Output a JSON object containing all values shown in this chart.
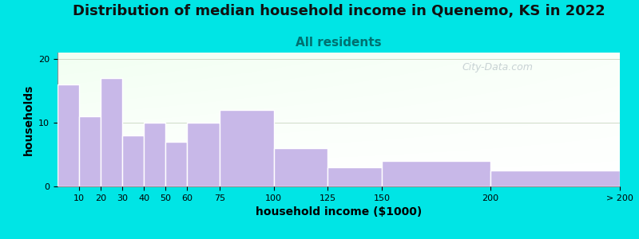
{
  "title": "Distribution of median household income in Quenemo, KS in 2022",
  "subtitle": "All residents",
  "xlabel": "household income ($1000)",
  "ylabel": "households",
  "bar_lefts": [
    0,
    10,
    20,
    30,
    40,
    50,
    60,
    75,
    100,
    125,
    150,
    200
  ],
  "bar_widths": [
    10,
    10,
    10,
    10,
    10,
    10,
    15,
    25,
    25,
    25,
    50,
    60
  ],
  "bar_values": [
    16,
    11,
    17,
    8,
    10,
    7,
    10,
    12,
    6,
    3,
    4,
    2.5
  ],
  "bar_color": "#c8b8e8",
  "bar_edgecolor": "#ffffff",
  "bar_linewidth": 1.0,
  "ylim": [
    0,
    21
  ],
  "xlim": [
    0,
    260
  ],
  "yticks": [
    0,
    10,
    20
  ],
  "xtick_positions": [
    10,
    20,
    30,
    40,
    50,
    60,
    75,
    100,
    125,
    150,
    200,
    260
  ],
  "xtick_labels": [
    "10",
    "20",
    "30",
    "40",
    "50",
    "60",
    "75",
    "100",
    "125",
    "150",
    "200",
    "> 200"
  ],
  "background_outer": "#00e5e5",
  "title_fontsize": 13,
  "subtitle_fontsize": 11,
  "subtitle_color": "#007070",
  "axis_label_fontsize": 10,
  "tick_fontsize": 8,
  "watermark_text": "City-Data.com",
  "watermark_color": "#a8b4bc",
  "watermark_alpha": 0.6
}
